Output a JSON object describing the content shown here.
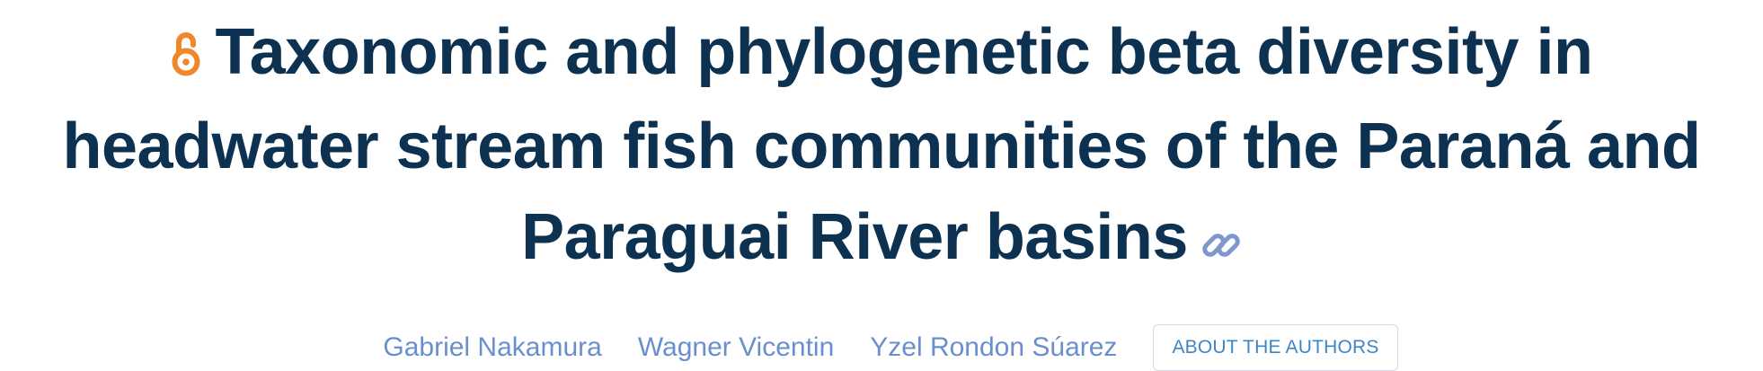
{
  "article": {
    "title": "Taxonomic and phylogenetic beta diversity in headwater stream fish communities of the Paraná and Paraguai River basins",
    "open_access_icon": "open-lock-icon",
    "permalink_icon": "chain-link-icon"
  },
  "authors": [
    {
      "name": "Gabriel Nakamura"
    },
    {
      "name": "Wagner Vicentin"
    },
    {
      "name": "Yzel Rondon Súarez"
    }
  ],
  "about_button": {
    "label": "ABOUT THE AUTHORS"
  },
  "colors": {
    "title": "#0d3150",
    "open_access": "#f0872b",
    "link_icon": "#7d97cf",
    "author_link": "#6a8fcf",
    "button_text": "#3d86c6",
    "button_border": "#d4d8de"
  }
}
